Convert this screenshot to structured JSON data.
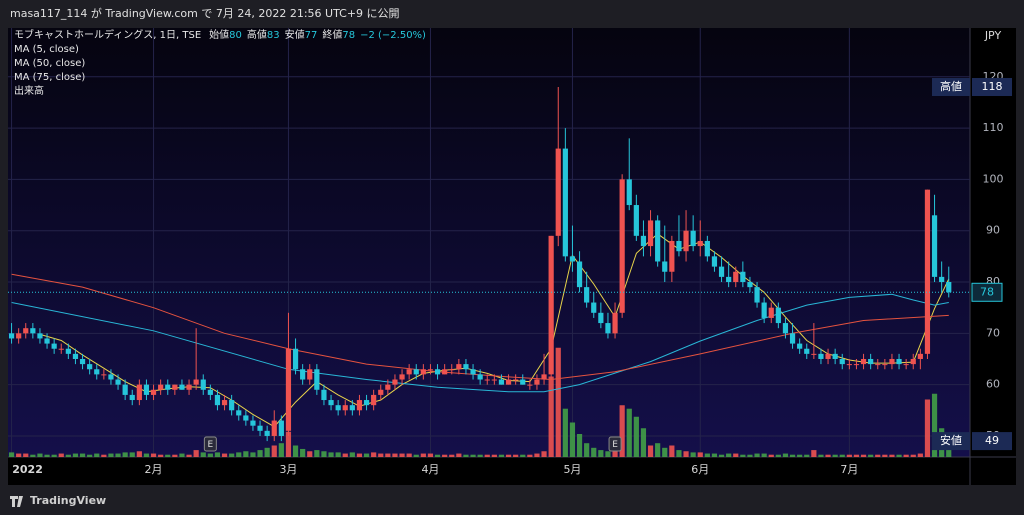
{
  "header": "masa117_114 が TradingView.com で 7月 24, 2022 21:56 UTC+9 に公開",
  "footer": "TradingView",
  "chart_data": {
    "type": "candlestick",
    "title": "モブキャストホールディングス, 1日, TSE",
    "ohlc_labels": [
      "始値",
      "高値",
      "安値",
      "終値"
    ],
    "change_label": "−2 (−2.50%)",
    "currency": "JPY",
    "up_color": "#ef5350",
    "down_color": "#26c6da",
    "volume_up_color": "#ef5350",
    "volume_down_color": "#43a047",
    "volume_name": "出来高",
    "ylim": [
      45.9,
      129.5
    ],
    "yticks": [
      50,
      60,
      70,
      80,
      90,
      100,
      110,
      120
    ],
    "grid": true,
    "volume_lim": [
      0,
      100
    ],
    "months": [
      {
        "index": 0,
        "label": "2022"
      },
      {
        "index": 20,
        "label": "2月"
      },
      {
        "index": 39,
        "label": "3月"
      },
      {
        "index": 59,
        "label": "4月"
      },
      {
        "index": 79,
        "label": "5月"
      },
      {
        "index": 97,
        "label": "6月"
      },
      {
        "index": 118,
        "label": "7月"
      }
    ],
    "events": [
      {
        "index": 28,
        "label": "E"
      },
      {
        "index": 85,
        "label": "E"
      }
    ],
    "high_marker": {
      "label": "高値",
      "value": 118
    },
    "low_marker": {
      "label": "安値",
      "value": 49
    },
    "ohlc": [
      [
        70,
        72,
        68,
        69
      ],
      [
        69,
        71,
        68,
        70
      ],
      [
        70,
        72,
        69,
        71
      ],
      [
        71,
        72,
        69,
        70
      ],
      [
        70,
        71,
        68,
        69
      ],
      [
        69,
        70,
        67,
        68
      ],
      [
        68,
        69,
        66,
        67
      ],
      [
        67,
        68,
        66,
        67
      ],
      [
        67,
        68,
        65,
        66
      ],
      [
        66,
        67,
        64,
        65
      ],
      [
        65,
        66,
        63,
        64
      ],
      [
        64,
        65,
        62,
        63
      ],
      [
        63,
        64,
        61,
        62
      ],
      [
        62,
        63,
        61,
        62
      ],
      [
        62,
        63,
        60,
        61
      ],
      [
        61,
        62,
        59,
        60
      ],
      [
        60,
        61,
        57,
        58
      ],
      [
        58,
        59,
        56,
        57
      ],
      [
        57,
        61,
        56,
        60
      ],
      [
        60,
        61,
        57,
        58
      ],
      [
        58,
        60,
        57,
        59
      ],
      [
        59,
        61,
        58,
        60
      ],
      [
        60,
        61,
        58,
        59
      ],
      [
        59,
        60,
        58,
        60
      ],
      [
        60,
        61,
        59,
        59
      ],
      [
        59,
        61,
        58,
        60
      ],
      [
        60,
        71,
        59,
        61
      ],
      [
        61,
        62,
        58,
        59
      ],
      [
        59,
        60,
        57,
        58
      ],
      [
        58,
        59,
        55,
        56
      ],
      [
        56,
        58,
        55,
        57
      ],
      [
        57,
        58,
        54,
        55
      ],
      [
        55,
        56,
        53,
        54
      ],
      [
        54,
        55,
        52,
        53
      ],
      [
        53,
        54,
        51,
        52
      ],
      [
        52,
        53,
        50,
        51
      ],
      [
        51,
        52,
        49,
        50
      ],
      [
        50,
        55,
        49,
        53
      ],
      [
        53,
        54,
        49,
        50
      ],
      [
        51,
        74,
        50,
        67
      ],
      [
        67,
        69,
        62,
        63
      ],
      [
        63,
        64,
        60,
        61
      ],
      [
        61,
        64,
        60,
        63
      ],
      [
        63,
        64,
        58,
        59
      ],
      [
        59,
        60,
        56,
        57
      ],
      [
        57,
        58,
        55,
        56
      ],
      [
        56,
        57,
        54,
        55
      ],
      [
        55,
        57,
        54,
        56
      ],
      [
        56,
        57,
        54,
        55
      ],
      [
        55,
        58,
        54,
        57
      ],
      [
        57,
        58,
        55,
        56
      ],
      [
        56,
        59,
        55,
        58
      ],
      [
        58,
        60,
        57,
        59
      ],
      [
        59,
        61,
        58,
        60
      ],
      [
        60,
        62,
        59,
        61
      ],
      [
        61,
        63,
        60,
        62
      ],
      [
        62,
        64,
        61,
        63
      ],
      [
        63,
        64,
        61,
        62
      ],
      [
        62,
        64,
        61,
        63
      ],
      [
        63,
        64,
        62,
        63
      ],
      [
        63,
        64,
        61,
        62
      ],
      [
        62,
        64,
        62,
        63
      ],
      [
        63,
        64,
        62,
        63
      ],
      [
        63,
        65,
        62,
        64
      ],
      [
        64,
        65,
        62,
        63
      ],
      [
        63,
        64,
        61,
        62
      ],
      [
        62,
        63,
        60,
        61
      ],
      [
        61,
        62,
        60,
        61
      ],
      [
        61,
        62,
        60,
        61
      ],
      [
        61,
        62,
        60,
        60
      ],
      [
        60,
        62,
        60,
        61
      ],
      [
        61,
        62,
        60,
        61
      ],
      [
        61,
        62,
        60,
        60
      ],
      [
        60,
        61,
        59,
        60
      ],
      [
        60,
        62,
        59,
        61
      ],
      [
        61,
        66,
        60,
        62
      ],
      [
        62,
        89,
        61,
        89
      ],
      [
        89,
        118,
        87,
        106
      ],
      [
        106,
        110,
        84,
        85
      ],
      [
        85,
        91,
        82,
        84
      ],
      [
        84,
        86,
        78,
        79
      ],
      [
        79,
        82,
        75,
        76
      ],
      [
        76,
        78,
        73,
        74
      ],
      [
        74,
        76,
        71,
        72
      ],
      [
        72,
        74,
        69,
        70
      ],
      [
        70,
        76,
        69,
        74
      ],
      [
        74,
        101,
        73,
        100
      ],
      [
        100,
        108,
        94,
        95
      ],
      [
        95,
        97,
        88,
        89
      ],
      [
        89,
        92,
        85,
        87
      ],
      [
        87,
        94,
        85,
        92
      ],
      [
        92,
        93,
        83,
        84
      ],
      [
        84,
        91,
        80,
        82
      ],
      [
        82,
        89,
        80,
        88
      ],
      [
        88,
        93,
        85,
        86
      ],
      [
        86,
        94,
        84,
        90
      ],
      [
        90,
        93,
        86,
        87
      ],
      [
        87,
        92,
        85,
        88
      ],
      [
        88,
        89,
        84,
        85
      ],
      [
        85,
        86,
        82,
        83
      ],
      [
        83,
        85,
        80,
        81
      ],
      [
        81,
        84,
        79,
        80
      ],
      [
        80,
        83,
        79,
        82
      ],
      [
        82,
        84,
        79,
        80
      ],
      [
        80,
        81,
        78,
        79
      ],
      [
        79,
        80,
        75,
        76
      ],
      [
        76,
        77,
        72,
        73
      ],
      [
        73,
        76,
        72,
        75
      ],
      [
        75,
        76,
        71,
        72
      ],
      [
        72,
        73,
        69,
        70
      ],
      [
        70,
        72,
        67,
        68
      ],
      [
        68,
        69,
        66,
        67
      ],
      [
        67,
        68,
        65,
        66
      ],
      [
        66,
        72,
        65,
        66
      ],
      [
        66,
        67,
        64,
        65
      ],
      [
        65,
        67,
        64,
        66
      ],
      [
        66,
        67,
        64,
        65
      ],
      [
        65,
        66,
        63,
        64
      ],
      [
        64,
        65,
        63,
        64
      ],
      [
        64,
        65,
        63,
        64
      ],
      [
        64,
        66,
        63,
        65
      ],
      [
        65,
        66,
        63,
        64
      ],
      [
        64,
        65,
        63,
        64
      ],
      [
        64,
        65,
        63,
        64
      ],
      [
        64,
        66,
        63,
        65
      ],
      [
        65,
        66,
        63,
        64
      ],
      [
        64,
        65,
        63,
        64
      ],
      [
        64,
        66,
        63,
        65
      ],
      [
        65,
        67,
        63,
        66
      ],
      [
        66,
        98,
        65,
        98
      ],
      [
        93,
        97,
        80,
        81
      ],
      [
        81,
        84,
        78,
        80
      ],
      [
        80,
        83,
        77,
        78
      ]
    ],
    "volume": [
      4,
      3,
      3,
      2,
      3,
      2,
      2,
      3,
      2,
      3,
      3,
      2,
      3,
      2,
      3,
      3,
      4,
      4,
      5,
      3,
      3,
      2,
      2,
      2,
      3,
      2,
      6,
      4,
      3,
      4,
      3,
      3,
      4,
      5,
      4,
      6,
      8,
      10,
      12,
      22,
      10,
      7,
      5,
      6,
      5,
      4,
      4,
      3,
      4,
      3,
      3,
      4,
      3,
      3,
      3,
      3,
      3,
      2,
      3,
      3,
      2,
      2,
      2,
      3,
      2,
      2,
      2,
      2,
      2,
      2,
      2,
      2,
      2,
      2,
      3,
      5,
      70,
      95,
      42,
      30,
      20,
      12,
      8,
      6,
      5,
      10,
      45,
      42,
      35,
      25,
      10,
      12,
      8,
      10,
      6,
      5,
      4,
      4,
      3,
      3,
      2,
      3,
      3,
      2,
      2,
      3,
      3,
      2,
      2,
      3,
      2,
      2,
      2,
      6,
      2,
      2,
      2,
      2,
      2,
      2,
      2,
      2,
      2,
      2,
      2,
      2,
      2,
      2,
      3,
      50,
      55,
      25,
      8
    ],
    "series": [
      {
        "name": "MA (5, close)",
        "color": "#e8d44a",
        "x": [
          4,
          7,
          10,
          13,
          16,
          19,
          22,
          25,
          28,
          31,
          34,
          37,
          40,
          43,
          46,
          49,
          52,
          55,
          58,
          61,
          64,
          67,
          70,
          73,
          76,
          79,
          82,
          85,
          88,
          91,
          94,
          97,
          100,
          103,
          106,
          109,
          112,
          115,
          118,
          121,
          124,
          127,
          130,
          132
        ],
        "values": [
          69.8,
          68.6,
          65.8,
          63.2,
          60.6,
          58.6,
          59.2,
          59.6,
          59.4,
          57,
          54.2,
          51.8,
          56.6,
          60.6,
          58,
          55.8,
          57,
          60,
          62.2,
          62.8,
          63.2,
          62.2,
          60.8,
          60.6,
          67,
          85.2,
          79.6,
          73.2,
          85.6,
          89.4,
          86.4,
          87.8,
          84.8,
          81.2,
          78,
          73.2,
          68.6,
          66,
          64.8,
          64.2,
          64.2,
          64.4,
          74.8,
          80.6
        ]
      },
      {
        "name": "MA (50, close)",
        "color": "#29b6d6",
        "x": [
          0,
          20,
          39,
          50,
          60,
          70,
          75,
          80,
          90,
          97,
          105,
          112,
          118,
          124,
          127,
          130,
          132
        ],
        "values": [
          76,
          70.5,
          63,
          61,
          59.5,
          58.6,
          58.6,
          60,
          64.5,
          68.5,
          72.5,
          75.5,
          77,
          77.6,
          76.5,
          75.5,
          76
        ]
      },
      {
        "name": "MA (75, close)",
        "color": "#e5533f",
        "x": [
          0,
          10,
          20,
          30,
          39,
          50,
          60,
          70,
          76,
          85,
          97,
          110,
          120,
          132
        ],
        "values": [
          81.5,
          79,
          75,
          70,
          67,
          64,
          62.5,
          61.5,
          61,
          62.5,
          66,
          70,
          72.5,
          73.5
        ]
      }
    ]
  }
}
